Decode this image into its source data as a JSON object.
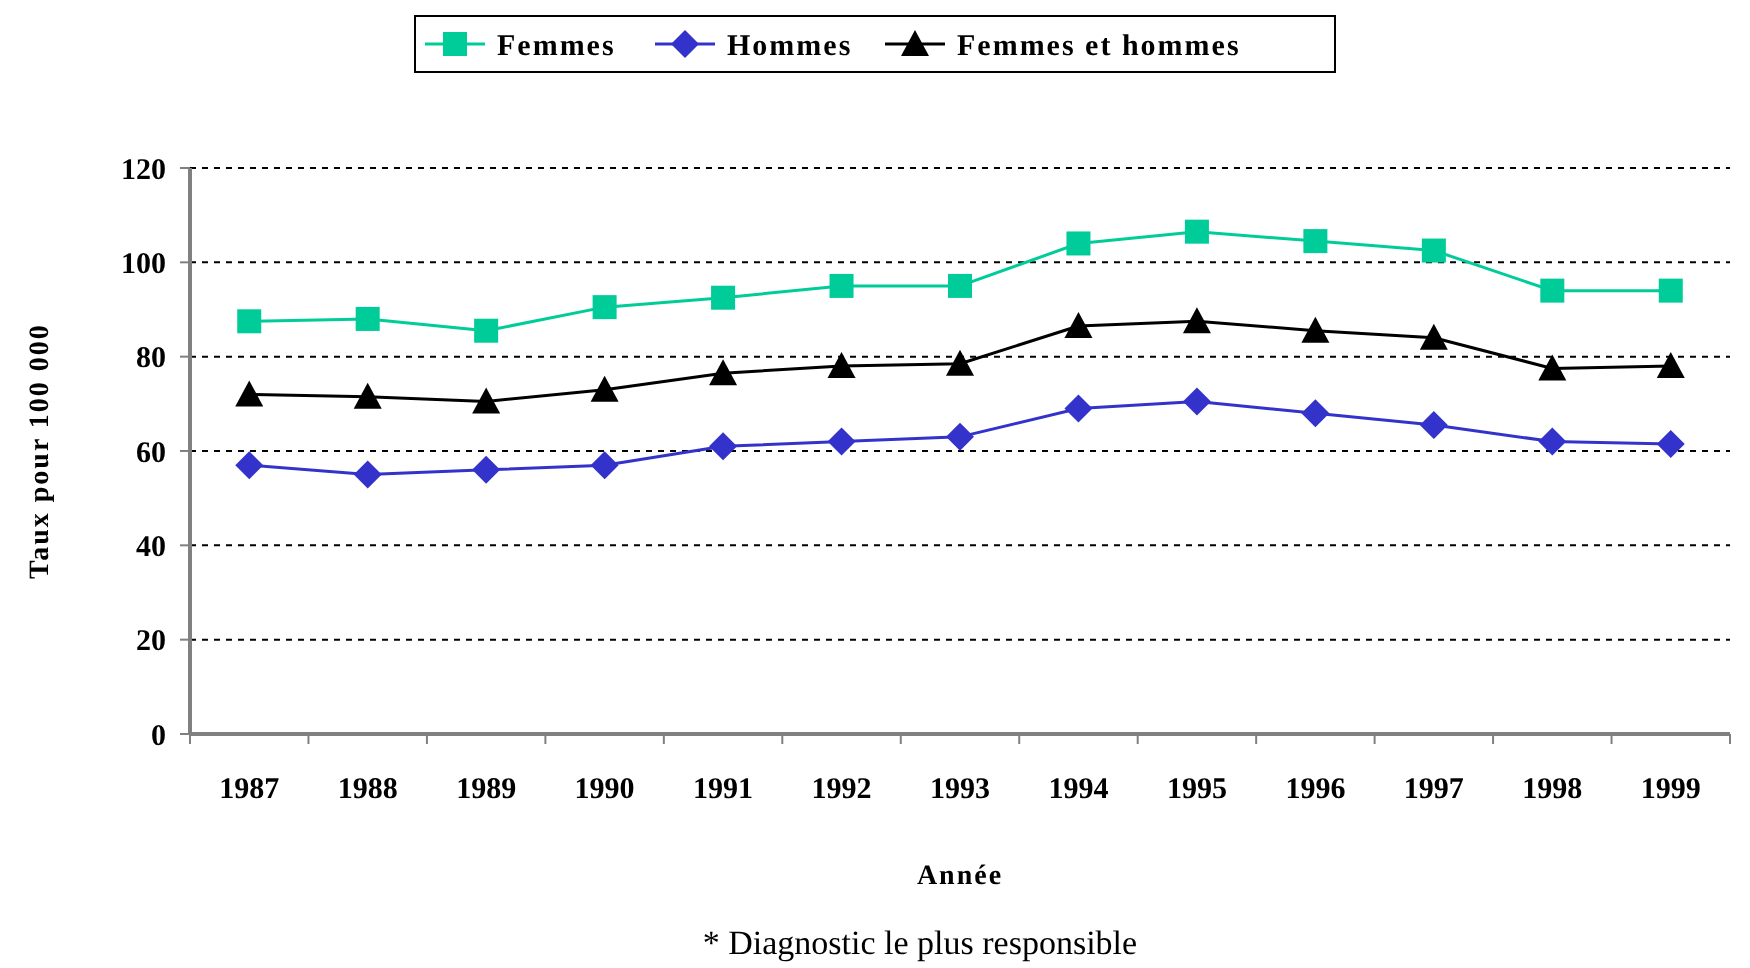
{
  "chart_data": {
    "type": "line",
    "xlabel": "Année",
    "ylabel": "Taux pour 100 000",
    "categories": [
      "1987",
      "1988",
      "1989",
      "1990",
      "1991",
      "1992",
      "1993",
      "1994",
      "1995",
      "1996",
      "1997",
      "1998",
      "1999"
    ],
    "series": [
      {
        "name": "Femmes",
        "color": "#00cc99",
        "marker": "square",
        "values": [
          87.5,
          88,
          85.5,
          90.5,
          92.5,
          95,
          95,
          104,
          106.5,
          104.5,
          102.5,
          94,
          94
        ]
      },
      {
        "name": "Hommes",
        "color": "#3333cc",
        "marker": "diamond",
        "values": [
          57,
          55,
          56,
          57,
          61,
          62,
          63,
          69,
          70.5,
          68,
          65.5,
          62,
          61.5
        ]
      },
      {
        "name": "Femmes et hommes",
        "color": "#000000",
        "marker": "triangle",
        "values": [
          72,
          71.5,
          70.5,
          73,
          76.5,
          78,
          78.5,
          86.5,
          87.5,
          85.5,
          84,
          77.5,
          78
        ]
      }
    ],
    "ylim": [
      0,
      120
    ],
    "yticks": [
      0,
      20,
      40,
      60,
      80,
      100,
      120
    ],
    "grid": "y",
    "legend": "top",
    "line_style": "solid",
    "annotations": [
      "* Diagnostic le plus responsible"
    ]
  }
}
